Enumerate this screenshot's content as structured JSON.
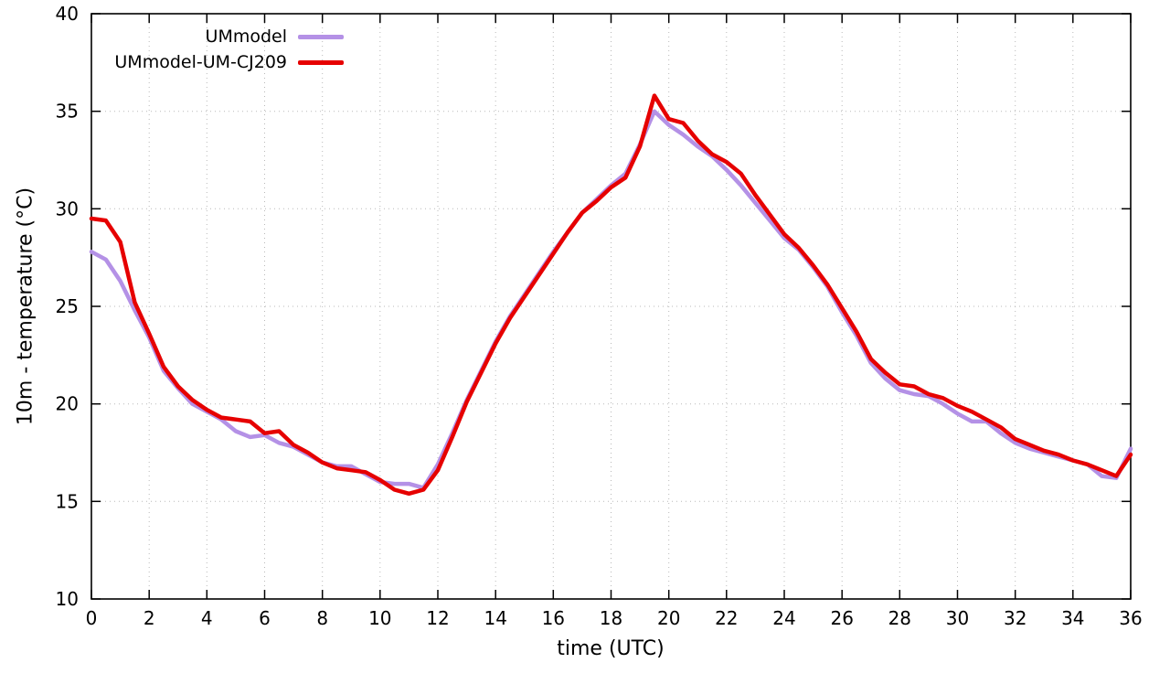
{
  "chart_data": {
    "type": "line",
    "title": "",
    "xlabel": "time (UTC)",
    "ylabel": "10m - temperature (°C)",
    "xlim": [
      0,
      36
    ],
    "ylim": [
      10,
      40
    ],
    "xticks": [
      0,
      2,
      4,
      6,
      8,
      10,
      12,
      14,
      16,
      18,
      20,
      22,
      24,
      26,
      28,
      30,
      32,
      34,
      36
    ],
    "yticks": [
      10,
      15,
      20,
      25,
      30,
      35,
      40
    ],
    "grid": true,
    "legend_position": "top-left-inside",
    "x": [
      0,
      0.5,
      1,
      1.5,
      2,
      2.5,
      3,
      3.5,
      4,
      4.5,
      5,
      5.5,
      6,
      6.5,
      7,
      7.5,
      8,
      8.5,
      9,
      9.5,
      10,
      10.5,
      11,
      11.5,
      12,
      12.5,
      13,
      13.5,
      14,
      14.5,
      15,
      15.5,
      16,
      16.5,
      17,
      17.5,
      18,
      18.5,
      19,
      19.5,
      20,
      20.5,
      21,
      21.5,
      22,
      22.5,
      23,
      23.5,
      24,
      24.5,
      25,
      25.5,
      26,
      26.5,
      27,
      27.5,
      28,
      28.5,
      29,
      29.5,
      30,
      30.5,
      31,
      31.5,
      32,
      32.5,
      33,
      33.5,
      34,
      34.5,
      35,
      35.5,
      36
    ],
    "series": [
      {
        "name": "UMmodel",
        "color": "#b491e6",
        "values": [
          27.8,
          27.4,
          26.3,
          24.8,
          23.4,
          21.7,
          20.8,
          20.0,
          19.6,
          19.2,
          18.6,
          18.3,
          18.4,
          18.0,
          17.8,
          17.4,
          17.0,
          16.8,
          16.8,
          16.4,
          16.0,
          15.9,
          15.9,
          15.7,
          16.9,
          18.5,
          20.2,
          21.7,
          23.2,
          24.5,
          25.6,
          26.7,
          27.8,
          28.8,
          29.8,
          30.5,
          31.2,
          31.8,
          33.3,
          35.0,
          34.3,
          33.8,
          33.2,
          32.7,
          32.0,
          31.2,
          30.3,
          29.4,
          28.5,
          27.9,
          27.0,
          26.0,
          24.7,
          23.5,
          22.1,
          21.3,
          20.7,
          20.5,
          20.4,
          20.0,
          19.5,
          19.1,
          19.1,
          18.5,
          18.0,
          17.7,
          17.5,
          17.3,
          17.1,
          16.9,
          16.3,
          16.2,
          17.7
        ]
      },
      {
        "name": "UMmodel-UM-CJ209",
        "color": "#e60000",
        "values": [
          29.5,
          29.4,
          28.3,
          25.2,
          23.6,
          21.9,
          20.9,
          20.2,
          19.7,
          19.3,
          19.2,
          19.1,
          18.5,
          18.6,
          17.9,
          17.5,
          17.0,
          16.7,
          16.6,
          16.5,
          16.1,
          15.6,
          15.4,
          15.6,
          16.6,
          18.3,
          20.1,
          21.6,
          23.1,
          24.4,
          25.5,
          26.6,
          27.7,
          28.8,
          29.8,
          30.4,
          31.1,
          31.6,
          33.2,
          35.8,
          34.6,
          34.4,
          33.5,
          32.8,
          32.4,
          31.8,
          30.7,
          29.7,
          28.7,
          28.0,
          27.1,
          26.1,
          24.9,
          23.7,
          22.3,
          21.6,
          21.0,
          20.9,
          20.5,
          20.3,
          19.9,
          19.6,
          19.2,
          18.8,
          18.2,
          17.9,
          17.6,
          17.4,
          17.1,
          16.9,
          16.6,
          16.3,
          17.4
        ]
      }
    ]
  }
}
